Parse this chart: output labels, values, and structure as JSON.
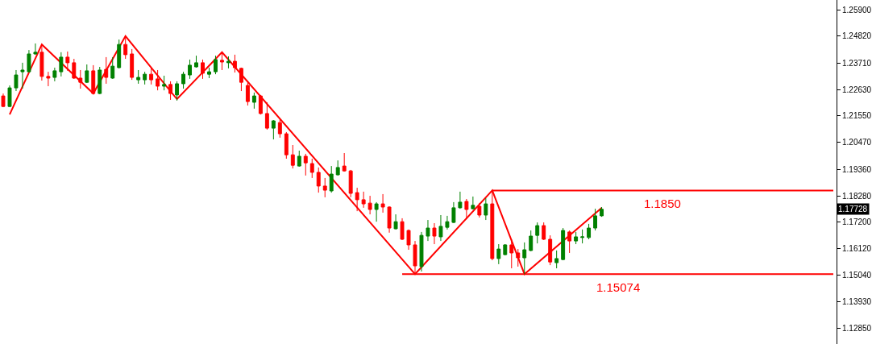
{
  "chart_data": {
    "type": "candlestick",
    "categories": [
      null,
      null,
      null,
      null,
      null,
      null,
      null,
      null,
      null,
      null,
      null,
      null,
      null,
      null,
      null,
      null,
      null,
      null,
      null,
      null,
      null,
      null,
      null,
      null,
      null,
      null,
      null,
      null,
      null,
      null,
      null,
      null,
      null,
      null,
      null,
      null,
      null,
      null,
      null,
      null,
      null,
      null,
      null,
      null,
      null,
      null,
      null,
      null,
      null,
      null,
      null,
      null,
      null,
      null,
      null,
      null,
      null,
      null,
      null,
      null,
      null,
      null,
      null,
      null,
      null,
      null,
      null,
      null,
      null,
      null,
      null,
      null,
      null,
      null,
      null,
      null,
      null,
      null,
      null,
      null,
      null,
      null,
      null,
      null,
      null,
      null,
      null,
      null,
      null,
      null,
      null,
      null,
      null,
      null,
      null,
      null,
      null,
      null,
      null,
      null,
      null,
      null,
      null,
      null,
      null,
      null,
      null,
      null,
      null,
      null,
      null,
      null,
      null,
      null,
      null,
      null,
      null,
      null,
      null,
      null,
      null,
      null,
      null,
      null,
      null,
      null,
      null,
      null,
      null,
      null
    ],
    "ohlc": [
      [
        1.2237,
        1.2247,
        1.2191,
        1.2194
      ],
      [
        1.2194,
        1.228,
        1.2191,
        1.227
      ],
      [
        1.227,
        1.2343,
        1.2257,
        1.2323
      ],
      [
        1.2336,
        1.2373,
        1.2267,
        1.2343
      ],
      [
        1.2336,
        1.2425,
        1.2333,
        1.2409
      ],
      [
        1.2409,
        1.2452,
        1.2406,
        1.2416
      ],
      [
        1.2416,
        1.2448,
        1.23,
        1.2317
      ],
      [
        1.2317,
        1.2336,
        1.2277,
        1.231
      ],
      [
        1.2313,
        1.2353,
        1.2297,
        1.234
      ],
      [
        1.2336,
        1.2416,
        1.2317,
        1.2396
      ],
      [
        1.2396,
        1.2419,
        1.234,
        1.2373
      ],
      [
        1.2373,
        1.2389,
        1.2307,
        1.231
      ],
      [
        1.231,
        1.2343,
        1.2267,
        1.2293
      ],
      [
        1.2293,
        1.2366,
        1.229,
        1.234
      ],
      [
        1.234,
        1.2363,
        1.2244,
        1.2247
      ],
      [
        1.2247,
        1.2356,
        1.2244,
        1.2343
      ],
      [
        1.2346,
        1.2396,
        1.2287,
        1.2313
      ],
      [
        1.231,
        1.2396,
        1.2307,
        1.2359
      ],
      [
        1.2353,
        1.2468,
        1.235,
        1.2448
      ],
      [
        1.2448,
        1.2482,
        1.2389,
        1.2406
      ],
      [
        1.2409,
        1.2429,
        1.2303,
        1.2313
      ],
      [
        1.2303,
        1.2343,
        1.2287,
        1.2313
      ],
      [
        1.2303,
        1.2336,
        1.2284,
        1.2326
      ],
      [
        1.2326,
        1.235,
        1.2284,
        1.2303
      ],
      [
        1.2307,
        1.2343,
        1.226,
        1.2277
      ],
      [
        1.2277,
        1.232,
        1.226,
        1.2284
      ],
      [
        1.2284,
        1.2297,
        1.2221,
        1.2247
      ],
      [
        1.2241,
        1.2297,
        1.2218,
        1.2287
      ],
      [
        1.2287,
        1.2336,
        1.2267,
        1.2326
      ],
      [
        1.2323,
        1.2386,
        1.2307,
        1.2363
      ],
      [
        1.2356,
        1.2402,
        1.2353,
        1.2373
      ],
      [
        1.2373,
        1.2386,
        1.2307,
        1.233
      ],
      [
        1.2326,
        1.2353,
        1.231,
        1.2336
      ],
      [
        1.2336,
        1.2402,
        1.2326,
        1.2386
      ],
      [
        1.2383,
        1.2412,
        1.2343,
        1.2376
      ],
      [
        1.2373,
        1.2399,
        1.235,
        1.2379
      ],
      [
        1.2379,
        1.2406,
        1.2333,
        1.2353
      ],
      [
        1.235,
        1.2353,
        1.2257,
        1.2293
      ],
      [
        1.228,
        1.2297,
        1.2198,
        1.2214
      ],
      [
        1.2211,
        1.2251,
        1.2185,
        1.2237
      ],
      [
        1.2237,
        1.2241,
        1.2161,
        1.2165
      ],
      [
        1.2165,
        1.2211,
        1.2099,
        1.2105
      ],
      [
        1.2105,
        1.2138,
        1.2059,
        1.2135
      ],
      [
        1.2128,
        1.2142,
        1.2066,
        1.2082
      ],
      [
        1.2082,
        1.2089,
        1.198,
        1.1996
      ],
      [
        1.1996,
        1.2036,
        1.194,
        1.1953
      ],
      [
        1.195,
        1.2013,
        1.1947,
        1.199
      ],
      [
        1.199,
        1.2,
        1.1911,
        1.1963
      ],
      [
        1.196,
        1.198,
        1.1901,
        1.1924
      ],
      [
        1.1924,
        1.1944,
        1.1841,
        1.1868
      ],
      [
        1.1868,
        1.1901,
        1.1822,
        1.1851
      ],
      [
        1.1848,
        1.195,
        1.1841,
        1.1917
      ],
      [
        1.1914,
        1.1973,
        1.1911,
        1.1944
      ],
      [
        1.195,
        1.2003,
        1.1927,
        1.193
      ],
      [
        1.193,
        1.1934,
        1.1822,
        1.1838
      ],
      [
        1.1841,
        1.1861,
        1.1765,
        1.1812
      ],
      [
        1.1812,
        1.1845,
        1.1779,
        1.1795
      ],
      [
        1.1798,
        1.1828,
        1.1752,
        1.1772
      ],
      [
        1.1772,
        1.1802,
        1.1722,
        1.1795
      ],
      [
        1.1795,
        1.1835,
        1.1759,
        1.1782
      ],
      [
        1.1782,
        1.1785,
        1.1677,
        1.1696
      ],
      [
        1.1693,
        1.1752,
        1.169,
        1.1722
      ],
      [
        1.1722,
        1.1736,
        1.1647,
        1.165
      ],
      [
        1.1686,
        1.169,
        1.1607,
        1.1627
      ],
      [
        1.1627,
        1.1643,
        1.1507,
        1.1541
      ],
      [
        1.1538,
        1.168,
        1.1518,
        1.1666
      ],
      [
        1.1663,
        1.1729,
        1.1643,
        1.1696
      ],
      [
        1.1696,
        1.1716,
        1.163,
        1.1663
      ],
      [
        1.166,
        1.1749,
        1.1643,
        1.1703
      ],
      [
        1.1699,
        1.1746,
        1.169,
        1.1722
      ],
      [
        1.1719,
        1.1802,
        1.1716,
        1.1779
      ],
      [
        1.1779,
        1.1845,
        1.1775,
        1.1802
      ],
      [
        1.1805,
        1.1815,
        1.1732,
        1.1772
      ],
      [
        1.1775,
        1.1825,
        1.1772,
        1.1789
      ],
      [
        1.1785,
        1.1798,
        1.1739,
        1.1749
      ],
      [
        1.1749,
        1.1818,
        1.1729,
        1.1795
      ],
      [
        1.1795,
        1.185,
        1.1564,
        1.1571
      ],
      [
        1.1571,
        1.163,
        1.1548,
        1.161
      ],
      [
        1.1587,
        1.163,
        1.1584,
        1.1627
      ],
      [
        1.1627,
        1.165,
        1.1531,
        1.1594
      ],
      [
        1.1594,
        1.161,
        1.1538,
        1.1574
      ],
      [
        1.1574,
        1.1637,
        1.1507,
        1.1607
      ],
      [
        1.1604,
        1.1686,
        1.1601,
        1.1663
      ],
      [
        1.1666,
        1.1719,
        1.1633,
        1.1706
      ],
      [
        1.1706,
        1.1719,
        1.1647,
        1.165
      ],
      [
        1.165,
        1.1666,
        1.1544,
        1.1557
      ],
      [
        1.1554,
        1.1604,
        1.1531,
        1.1571
      ],
      [
        1.1567,
        1.1696,
        1.1564,
        1.1686
      ],
      [
        1.168,
        1.1686,
        1.1594,
        1.1643
      ],
      [
        1.1643,
        1.168,
        1.163,
        1.166
      ],
      [
        1.1657,
        1.169,
        1.1633,
        1.166
      ],
      [
        1.1657,
        1.1713,
        1.165,
        1.1696
      ],
      [
        1.1696,
        1.1775,
        1.1686,
        1.1746
      ],
      [
        1.1746,
        1.1782,
        1.1742,
        1.1773
      ],
      null,
      null,
      null,
      null,
      null,
      null,
      null,
      null,
      null,
      null,
      null,
      null,
      null,
      null,
      null,
      null,
      null,
      null,
      null,
      null,
      null,
      null,
      null,
      null,
      null,
      null,
      null,
      null,
      null,
      null,
      null,
      null,
      null,
      null,
      null,
      null
    ],
    "colors": [
      "#ff0000",
      "#008000",
      "#008000",
      "#008000",
      "#008000",
      "#008000",
      "#ff0000",
      "#ff0000",
      "#008000",
      "#008000",
      "#ff0000",
      "#ff0000",
      "#ff0000",
      "#008000",
      "#ff0000",
      "#008000",
      "#ff0000",
      "#008000",
      "#008000",
      "#ff0000",
      "#ff0000",
      "#008000",
      "#008000",
      "#ff0000",
      "#ff0000",
      "#008000",
      "#ff0000",
      "#008000",
      "#008000",
      "#008000",
      "#008000",
      "#ff0000",
      "#008000",
      "#008000",
      "#ff0000",
      "#008000",
      "#ff0000",
      "#ff0000",
      "#ff0000",
      "#008000",
      "#ff0000",
      "#ff0000",
      "#008000",
      "#ff0000",
      "#ff0000",
      "#ff0000",
      "#008000",
      "#ff0000",
      "#ff0000",
      "#ff0000",
      "#ff0000",
      "#008000",
      "#008000",
      "#ff0000",
      "#ff0000",
      "#ff0000",
      "#ff0000",
      "#ff0000",
      "#008000",
      "#ff0000",
      "#ff0000",
      "#008000",
      "#ff0000",
      "#ff0000",
      "#ff0000",
      "#008000",
      "#008000",
      "#ff0000",
      "#008000",
      "#008000",
      "#008000",
      "#008000",
      "#ff0000",
      "#008000",
      "#ff0000",
      "#008000",
      "#ff0000",
      "#008000",
      "#008000",
      "#ff0000",
      "#ff0000",
      "#008000",
      "#008000",
      "#008000",
      "#ff0000",
      "#ff0000",
      "#008000",
      "#008000",
      "#ff0000",
      "#008000",
      "#008000",
      "#008000",
      "#008000",
      "#008000",
      null,
      null,
      null,
      null,
      null,
      null,
      null,
      null,
      null,
      null,
      null,
      null,
      null,
      null,
      null,
      null,
      null,
      null,
      null,
      null,
      null,
      null,
      null,
      null,
      null,
      null,
      null,
      null,
      null,
      null,
      null,
      null,
      null,
      null,
      null,
      null
    ],
    "series": [
      {
        "type": "line",
        "color": "#ff0000",
        "values": [
          null,
          1.2161,
          null,
          null,
          null,
          null,
          1.2448,
          null,
          null,
          null,
          null,
          null,
          null,
          null,
          1.2247,
          null,
          null,
          null,
          null,
          1.2482,
          null,
          null,
          null,
          null,
          null,
          null,
          null,
          1.2224,
          null,
          null,
          null,
          null,
          null,
          null,
          1.2416,
          null,
          null,
          null,
          null,
          null,
          null,
          null,
          null,
          null,
          null,
          null,
          null,
          null,
          null,
          null,
          null,
          null,
          null,
          null,
          null,
          null,
          null,
          null,
          null,
          null,
          null,
          null,
          null,
          null,
          1.15074,
          null,
          null,
          null,
          null,
          null,
          null,
          null,
          null,
          null,
          null,
          null,
          1.185,
          null,
          null,
          null,
          null,
          1.15074,
          null,
          null,
          null,
          null,
          null,
          null,
          null,
          null,
          null,
          null,
          null,
          1.1779,
          null,
          null,
          null,
          null,
          null,
          null,
          null,
          null,
          null,
          null,
          null,
          null,
          null,
          null,
          null,
          null,
          null,
          null,
          null,
          null,
          null,
          null,
          null,
          null,
          null,
          null,
          null,
          null,
          null,
          null,
          null,
          null,
          null,
          null,
          null,
          null
        ]
      },
      {
        "type": "line",
        "name": "1.1850",
        "color": "#ff0000",
        "values": [
          null,
          null,
          null,
          null,
          null,
          null,
          null,
          null,
          null,
          null,
          null,
          null,
          null,
          null,
          null,
          null,
          null,
          null,
          null,
          null,
          null,
          null,
          null,
          null,
          null,
          null,
          null,
          null,
          null,
          null,
          null,
          null,
          null,
          null,
          null,
          null,
          null,
          null,
          null,
          null,
          null,
          null,
          null,
          null,
          null,
          null,
          null,
          null,
          null,
          null,
          null,
          null,
          null,
          null,
          null,
          null,
          null,
          null,
          null,
          null,
          null,
          null,
          null,
          null,
          null,
          null,
          null,
          null,
          null,
          null,
          null,
          null,
          null,
          null,
          null,
          null,
          1.185,
          null,
          null,
          null,
          null,
          null,
          null,
          null,
          null,
          null,
          null,
          null,
          null,
          null,
          null,
          null,
          null,
          null,
          null,
          null,
          null,
          null,
          null,
          null,
          null,
          null,
          null,
          null,
          null,
          null,
          null,
          null,
          null,
          null,
          null,
          null,
          null,
          null,
          null,
          null,
          null,
          null,
          null,
          null,
          null,
          null,
          null,
          null,
          null,
          null,
          null,
          null,
          null,
          1.185
        ]
      },
      {
        "type": "line",
        "name": "1.15074",
        "color": "#ff0000",
        "values": [
          null,
          null,
          null,
          null,
          null,
          null,
          null,
          null,
          null,
          null,
          null,
          null,
          null,
          null,
          null,
          null,
          null,
          null,
          null,
          null,
          null,
          null,
          null,
          null,
          null,
          null,
          null,
          null,
          null,
          null,
          null,
          null,
          null,
          null,
          null,
          null,
          null,
          null,
          null,
          null,
          null,
          null,
          null,
          null,
          null,
          null,
          null,
          null,
          null,
          null,
          null,
          null,
          null,
          null,
          null,
          null,
          null,
          null,
          null,
          null,
          null,
          null,
          1.15074,
          null,
          null,
          null,
          null,
          null,
          null,
          null,
          null,
          null,
          null,
          null,
          null,
          null,
          null,
          null,
          null,
          null,
          null,
          null,
          null,
          null,
          null,
          null,
          null,
          null,
          null,
          null,
          null,
          null,
          null,
          null,
          null,
          null,
          null,
          null,
          null,
          null,
          null,
          null,
          null,
          null,
          null,
          null,
          null,
          null,
          null,
          null,
          null,
          null,
          null,
          null,
          null,
          null,
          null,
          null,
          null,
          null,
          null,
          null,
          null,
          null,
          null,
          null,
          null,
          null,
          null,
          1.15074
        ]
      }
    ],
    "annotations": [
      {
        "text": "1.17728",
        "y": 1.17728
      }
    ],
    "ylim": [
      1.1221,
      1.263
    ],
    "yticks": [
      {
        "value": 1.259,
        "label": "1.25900"
      },
      {
        "value": 1.2482,
        "label": "1.24820"
      },
      {
        "value": 1.2371,
        "label": "1.23710"
      },
      {
        "value": 1.2263,
        "label": "1.22630"
      },
      {
        "value": 1.2155,
        "label": "1.21550"
      },
      {
        "value": 1.2047,
        "label": "1.20470"
      },
      {
        "value": 1.1936,
        "label": "1.19360"
      },
      {
        "value": 1.1828,
        "label": "1.18280"
      },
      {
        "value": 1.172,
        "label": "1.17200"
      },
      {
        "value": 1.1612,
        "label": "1.16120"
      },
      {
        "value": 1.1504,
        "label": "1.15040"
      },
      {
        "value": 1.1393,
        "label": "1.13930"
      },
      {
        "value": 1.1285,
        "label": "1.12850"
      }
    ],
    "tick_labels": "y",
    "legend": false
  }
}
